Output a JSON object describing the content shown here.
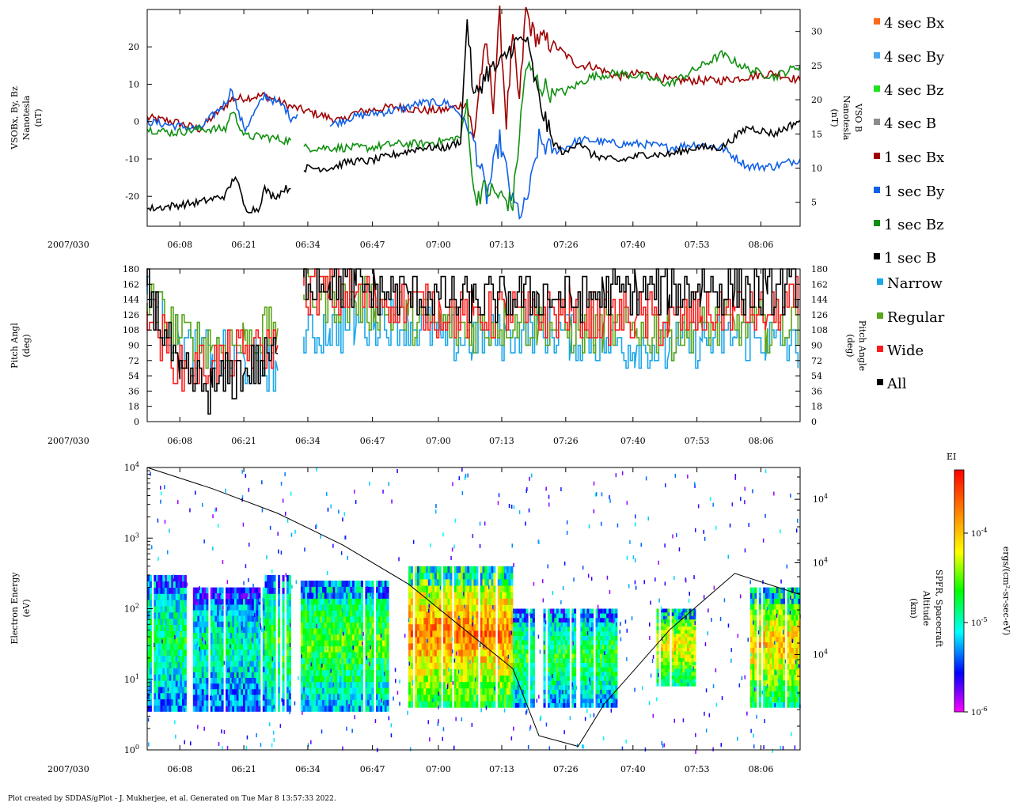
{
  "footer": "Plot created by SDDAS/gPlot - J. Mukherjee, et al.  Generated on Tue Mar 8 13:57:33 2022.",
  "date_label": "2007/030",
  "time_ticks": [
    "06:08",
    "06:21",
    "06:34",
    "06:47",
    "07:00",
    "07:13",
    "07:26",
    "07:40",
    "07:53",
    "08:06"
  ],
  "colors": {
    "bx4": "#ff6a1a",
    "by4": "#4aa8f0",
    "bz4": "#22e022",
    "b4": "#8c8c8c",
    "bx1": "#a00000",
    "by1": "#1060e8",
    "bz1": "#109010",
    "b1": "#000000",
    "narrow": "#19a7ea",
    "regular": "#5ca51a",
    "wide": "#ff1a1a",
    "all": "#000000"
  },
  "legend": [
    {
      "key": "bx4",
      "label": "4 sec Bx"
    },
    {
      "key": "by4",
      "label": "4 sec By"
    },
    {
      "key": "bz4",
      "label": "4 sec Bz"
    },
    {
      "key": "b4",
      "label": "4 sec B"
    },
    {
      "key": "bx1",
      "label": "1 sec Bx"
    },
    {
      "key": "by1",
      "label": "1 sec By"
    },
    {
      "key": "bz1",
      "label": "1 sec Bz"
    },
    {
      "key": "b1",
      "label": "1 sec B"
    },
    {
      "key": "narrow",
      "label": "Narrow"
    },
    {
      "key": "regular",
      "label": "Regular"
    },
    {
      "key": "wide",
      "label": "Wide"
    },
    {
      "key": "all",
      "label": "All"
    }
  ],
  "chart_data": [
    {
      "type": "line",
      "name": "magnetic-field",
      "ylabel_left": [
        "VSOBx, By, Bz",
        "Nanotesla",
        "(nT)"
      ],
      "ylabel_right": [
        "VSO B",
        "Nanotesla",
        "(nT)"
      ],
      "left_ticks": [
        "20",
        "10",
        "0",
        "-10",
        "-20"
      ],
      "left_tick_values": [
        20,
        10,
        0,
        -10,
        -20
      ],
      "right_ticks": [
        "30",
        "25",
        "20",
        "15",
        "10",
        "5"
      ],
      "right_tick_values": [
        30,
        25,
        20,
        15,
        10,
        5
      ],
      "ylim_left": [
        -28,
        30
      ],
      "ylim_right": [
        1.5,
        33.2
      ],
      "series": [
        {
          "name": "1 sec Bx",
          "key": "bx1",
          "axis": "left",
          "x": [
            0,
            4,
            8,
            13,
            18,
            22,
            26,
            30,
            31,
            34,
            38,
            42,
            45,
            47.5,
            49,
            50,
            51,
            52,
            53,
            54,
            55,
            56,
            57,
            58,
            59,
            60,
            62,
            64,
            66,
            68,
            72,
            76,
            80,
            84,
            88,
            92,
            96,
            100
          ],
          "y": [
            1,
            0,
            -2,
            6,
            7,
            4,
            2,
            0,
            2,
            3,
            4,
            3,
            3,
            4,
            5,
            -5,
            12,
            20,
            5,
            28,
            0,
            22,
            5,
            30,
            24,
            22,
            21,
            18,
            15,
            15,
            12,
            13,
            11,
            11,
            11,
            12,
            13,
            11
          ]
        },
        {
          "name": "1 sec By",
          "key": "by1",
          "axis": "left",
          "x": [
            0,
            4,
            8,
            12,
            13,
            14,
            15,
            18,
            21,
            22,
            23,
            24,
            28,
            31,
            34,
            38,
            42,
            46,
            48,
            50,
            52,
            54,
            56,
            57.5,
            59,
            60,
            62,
            64,
            66,
            68,
            72,
            76,
            80,
            84,
            88,
            92,
            96,
            100
          ],
          "y": [
            0,
            -1,
            -2,
            5,
            9,
            2,
            -2,
            7,
            4,
            1,
            2,
            null,
            -1,
            1,
            2,
            3,
            5,
            5,
            2,
            -5,
            -20,
            -5,
            -22,
            -25,
            -15,
            -5,
            -8,
            -7,
            -5,
            -5,
            -6,
            -6,
            -7,
            -6,
            -7,
            -12,
            -12,
            -10
          ]
        },
        {
          "name": "1 sec Bz",
          "key": "bz1",
          "axis": "left",
          "x": [
            0,
            4,
            8,
            12,
            13,
            15,
            18,
            21,
            22,
            23,
            24,
            28,
            31,
            34,
            38,
            42,
            46,
            48,
            49,
            50,
            52,
            54,
            56,
            58,
            60,
            62,
            64,
            66,
            68,
            72,
            76,
            80,
            84,
            88,
            92,
            96,
            100
          ],
          "y": [
            -2,
            -3,
            -2,
            -2,
            3,
            -4,
            -4,
            -5,
            -5,
            null,
            -7,
            -7,
            -7,
            -7,
            -6,
            -6,
            -5,
            -4,
            5,
            -20,
            -18,
            -20,
            -22,
            15,
            10,
            8,
            8,
            10,
            12,
            13,
            12,
            10,
            14,
            18,
            14,
            12,
            15
          ]
        },
        {
          "name": "1 sec B",
          "key": "b1",
          "axis": "right",
          "x": [
            0,
            4,
            8,
            12,
            13.5,
            15,
            17,
            18,
            19,
            20,
            21,
            22,
            23,
            24,
            28,
            31,
            34,
            38,
            42,
            46,
            48,
            49,
            50,
            52,
            54,
            56,
            58,
            60,
            62,
            64,
            66,
            68,
            72,
            76,
            80,
            84,
            88,
            92,
            96,
            100
          ],
          "y": [
            4,
            4.5,
            5,
            6,
            9,
            4,
            4,
            7,
            6,
            6,
            7,
            7,
            null,
            10,
            10,
            11,
            11,
            12,
            13,
            13,
            14,
            32,
            20,
            24,
            25,
            28,
            29,
            20,
            14,
            12,
            14,
            12,
            11,
            12,
            12,
            13,
            13,
            16,
            15,
            17
          ]
        }
      ]
    },
    {
      "type": "line",
      "name": "pitch-angle",
      "ylabel_left": [
        "Pitch Angl",
        "(deg)"
      ],
      "ylabel_right": [
        "Pitch Angle",
        "(deg)"
      ],
      "ticks": [
        "180",
        "162",
        "144",
        "126",
        "108",
        "90",
        "72",
        "54",
        "36",
        "18",
        "0"
      ],
      "tick_values": [
        180,
        162,
        144,
        126,
        108,
        90,
        72,
        54,
        36,
        18,
        0
      ],
      "ylim": [
        0,
        180
      ],
      "series": [
        {
          "name": "Narrow",
          "key": "narrow",
          "x": [
            0,
            5,
            10,
            15,
            20,
            22,
            24,
            28,
            32,
            35,
            40,
            45,
            50,
            55,
            60,
            65,
            70,
            75,
            80,
            85,
            90,
            95,
            100
          ],
          "y": [
            150,
            90,
            80,
            70,
            60,
            null,
            100,
            110,
            115,
            120,
            115,
            100,
            95,
            105,
            110,
            100,
            95,
            90,
            85,
            95,
            100,
            95,
            85
          ]
        },
        {
          "name": "Regular",
          "key": "regular",
          "x": [
            0,
            5,
            10,
            15,
            20,
            22,
            24,
            28,
            32,
            35,
            40,
            45,
            50,
            55,
            60,
            65,
            70,
            75,
            80,
            85,
            90,
            95,
            100
          ],
          "y": [
            140,
            100,
            90,
            95,
            110,
            null,
            150,
            145,
            140,
            135,
            125,
            115,
            110,
            120,
            115,
            110,
            105,
            110,
            105,
            110,
            115,
            110,
            120
          ]
        },
        {
          "name": "Wide",
          "key": "wide",
          "x": [
            0,
            5,
            10,
            15,
            20,
            22,
            24,
            28,
            32,
            35,
            40,
            45,
            50,
            55,
            60,
            65,
            70,
            75,
            80,
            85,
            90,
            95,
            100
          ],
          "y": [
            130,
            60,
            70,
            80,
            90,
            null,
            160,
            150,
            150,
            145,
            140,
            130,
            125,
            130,
            125,
            130,
            120,
            125,
            115,
            125,
            130,
            125,
            140
          ]
        },
        {
          "name": "All",
          "key": "all",
          "x": [
            0,
            5,
            10,
            15,
            20,
            22,
            24,
            28,
            32,
            35,
            40,
            45,
            50,
            55,
            60,
            65,
            70,
            75,
            80,
            85,
            90,
            95,
            100
          ],
          "y": [
            160,
            50,
            40,
            60,
            80,
            null,
            170,
            165,
            160,
            155,
            150,
            145,
            140,
            145,
            150,
            145,
            150,
            155,
            150,
            160,
            155,
            150,
            160
          ]
        }
      ]
    },
    {
      "type": "heatmap",
      "name": "electron-spectrogram",
      "ylabel_left": [
        "Electron Energy",
        "(eV)"
      ],
      "ylabel_right": [
        "SPFR, Spacecraft",
        "Altitude",
        "(km)"
      ],
      "y_scale": "log",
      "ylim": [
        1,
        10000
      ],
      "left_tick_base": "10",
      "left_tick_exponents": [
        "4",
        "3",
        "2",
        "1",
        "0"
      ],
      "right_tick_base": "10",
      "right_tick_exponents": [
        "4",
        "4",
        "4"
      ],
      "colorbar": {
        "title": "EI",
        "label": "ergs/(cm²-sr-sec-eV)",
        "tick_base": "10",
        "tick_exponents": [
          "-4",
          "-5",
          "-6"
        ],
        "stops": [
          "#ff00ff",
          "#0000ff",
          "#00ffff",
          "#00ff00",
          "#ffff00",
          "#ff8000",
          "#ff0000"
        ]
      },
      "intensity_bands": [
        {
          "x0": 0,
          "x1": 6,
          "e_low": 3.5,
          "e_high": 300,
          "level": 0.45
        },
        {
          "x0": 7,
          "x1": 18,
          "e_low": 3.5,
          "e_high": 200,
          "level": 0.4
        },
        {
          "x0": 18,
          "x1": 22,
          "e_low": 3.5,
          "e_high": 300,
          "level": 0.5
        },
        {
          "x0": 23.5,
          "x1": 37,
          "e_low": 3.5,
          "e_high": 250,
          "level": 0.55
        },
        {
          "x0": 40,
          "x1": 56,
          "e_low": 4,
          "e_high": 400,
          "level": 0.85
        },
        {
          "x0": 56,
          "x1": 72,
          "e_low": 4,
          "e_high": 100,
          "level": 0.5
        },
        {
          "x0": 78,
          "x1": 84,
          "e_low": 8,
          "e_high": 100,
          "level": 0.7
        },
        {
          "x0": 92,
          "x1": 100,
          "e_low": 4,
          "e_high": 200,
          "level": 0.75
        }
      ],
      "altitude_curve": {
        "x": [
          0,
          10,
          20,
          30,
          40,
          50,
          56,
          60,
          66,
          70,
          80,
          90,
          100
        ],
        "log_energy": [
          4,
          3.7,
          3.35,
          2.9,
          2.35,
          1.6,
          1.15,
          0.2,
          0.05,
          0.65,
          1.7,
          2.5,
          2.2
        ]
      }
    }
  ]
}
